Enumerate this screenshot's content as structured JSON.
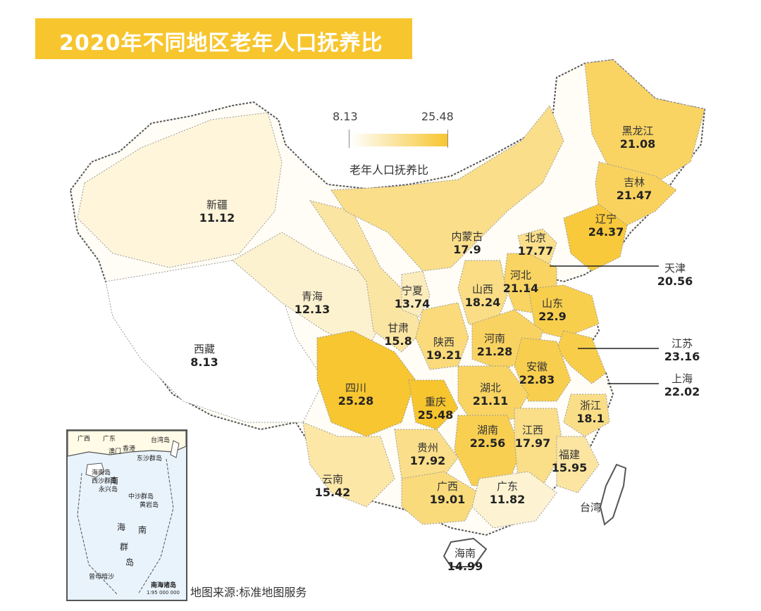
{
  "title": "2020年不同地区老年人口抚养比",
  "legend": {
    "min": "8.13",
    "max": "25.48",
    "label": "老年人口抚养比",
    "color_low": "#ffffff",
    "color_high": "#f7c52e"
  },
  "source": "地图来源:标准地图服务",
  "provinces": [
    {
      "name": "新疆",
      "value": "11.12"
    },
    {
      "name": "西藏",
      "value": "8.13"
    },
    {
      "name": "青海",
      "value": "12.13"
    },
    {
      "name": "甘肃",
      "value": "15.8"
    },
    {
      "name": "宁夏",
      "value": "13.74"
    },
    {
      "name": "内蒙古",
      "value": "17.9"
    },
    {
      "name": "黑龙江",
      "value": "21.08"
    },
    {
      "name": "吉林",
      "value": "21.47"
    },
    {
      "name": "辽宁",
      "value": "24.37"
    },
    {
      "name": "北京",
      "value": "17.77"
    },
    {
      "name": "天津",
      "value": "20.56"
    },
    {
      "name": "河北",
      "value": "21.14"
    },
    {
      "name": "山西",
      "value": "18.24"
    },
    {
      "name": "山东",
      "value": "22.9"
    },
    {
      "name": "陕西",
      "value": "19.21"
    },
    {
      "name": "河南",
      "value": "21.28"
    },
    {
      "name": "江苏",
      "value": "23.16"
    },
    {
      "name": "安徽",
      "value": "22.83"
    },
    {
      "name": "上海",
      "value": "22.02"
    },
    {
      "name": "四川",
      "value": "25.28"
    },
    {
      "name": "重庆",
      "value": "25.48"
    },
    {
      "name": "湖北",
      "value": "21.11"
    },
    {
      "name": "浙江",
      "value": "18.1"
    },
    {
      "name": "湖南",
      "value": "22.56"
    },
    {
      "name": "江西",
      "value": "17.97"
    },
    {
      "name": "贵州",
      "value": "17.92"
    },
    {
      "name": "福建",
      "value": "15.95"
    },
    {
      "name": "云南",
      "value": "15.42"
    },
    {
      "name": "广西",
      "value": "19.01"
    },
    {
      "name": "广东",
      "value": "11.82"
    },
    {
      "name": "台湾",
      "value": ""
    },
    {
      "name": "海南",
      "value": "14.99"
    }
  ],
  "inset": {
    "title": "南海诸岛",
    "scale": "1:95 000 000",
    "labels": [
      "台湾岛",
      "东沙群岛",
      "海南岛",
      "西沙群岛",
      "永兴岛",
      "中沙群岛",
      "黄岩岛",
      "南",
      "海",
      "南",
      "群",
      "岛",
      "曾母暗沙",
      "香港",
      "澳门",
      "广东",
      "广西"
    ]
  }
}
